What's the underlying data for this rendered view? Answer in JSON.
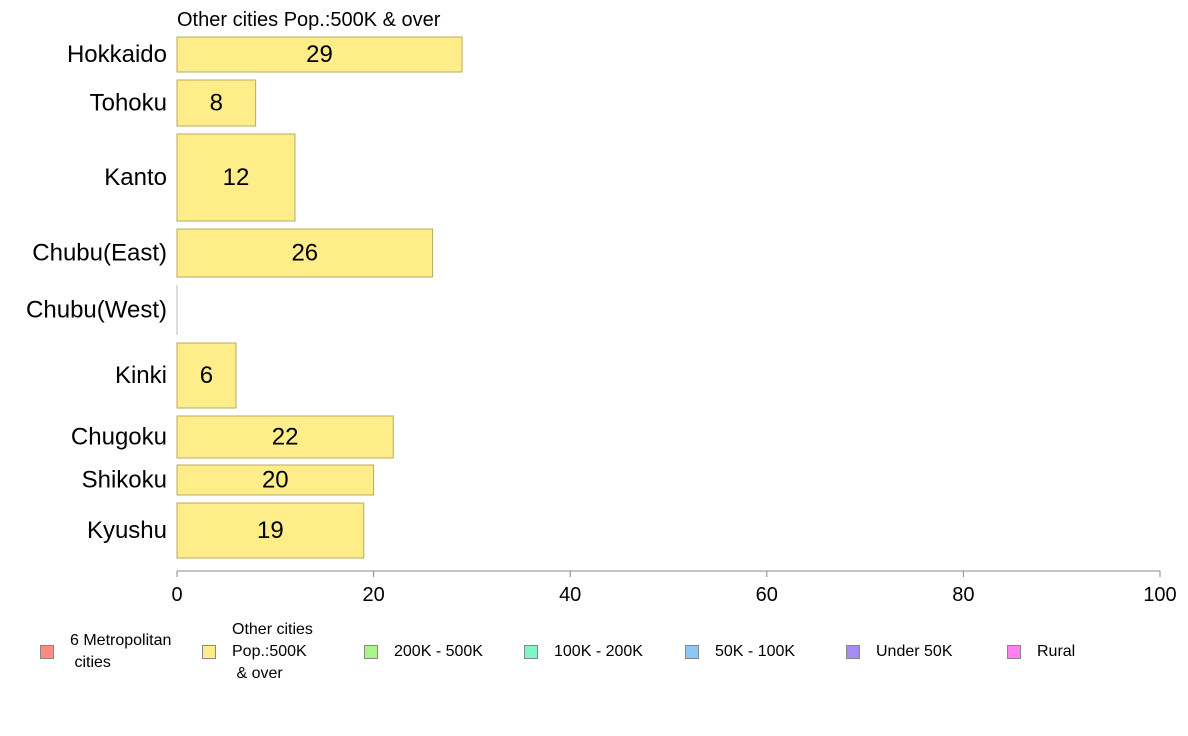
{
  "chart_data": {
    "type": "bar",
    "orientation": "horizontal",
    "title": "Other cities Pop.:500K & over",
    "categories": [
      "Hokkaido",
      "Tohoku",
      "Kanto",
      "Chubu(East)",
      "Chubu(West)",
      "Kinki",
      "Chugoku",
      "Shikoku",
      "Kyushu"
    ],
    "values": [
      29,
      8,
      12,
      26,
      0,
      6,
      22,
      20,
      19
    ],
    "value_labels": [
      "29",
      "8",
      "12",
      "26",
      "",
      "6",
      "22",
      "20",
      "19"
    ],
    "bar_color": "#ffed8a",
    "bar_stroke": "#b7ab62",
    "xlim": [
      0,
      100
    ],
    "xticks": [
      "0",
      "20",
      "40",
      "60",
      "80",
      "100"
    ],
    "xlabel": "",
    "ylabel": "",
    "grid": false,
    "legend_position": "bottom",
    "legend": [
      {
        "label": "6 Metropolitan\n cities",
        "color": "#ff8a80"
      },
      {
        "label": "Other cities\nPop.:500K\n & over",
        "color": "#ffed8a"
      },
      {
        "label": "200K - 500K",
        "color": "#a9f58a"
      },
      {
        "label": "100K - 200K",
        "color": "#80f5c8"
      },
      {
        "label": "50K - 100K",
        "color": "#8cc8f5"
      },
      {
        "label": "Under 50K",
        "color": "#a68af5"
      },
      {
        "label": "Rural",
        "color": "#ff80f0"
      }
    ]
  }
}
